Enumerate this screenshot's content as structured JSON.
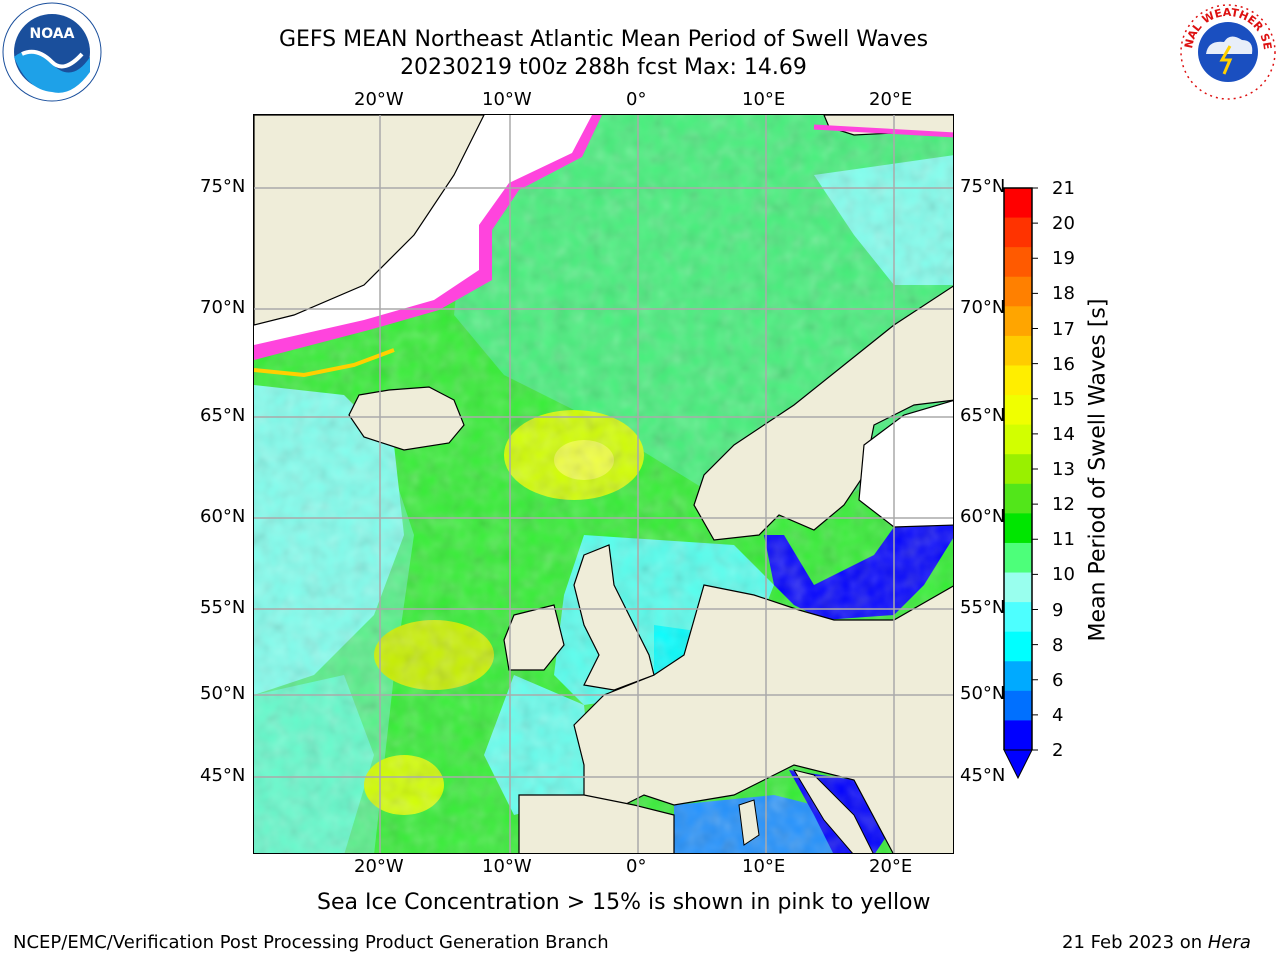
{
  "title": {
    "line1": "GEFS MEAN Northeast Atlantic Mean Period of Swell Waves",
    "line2": "20230219 t00z 288h fcst   Max: 14.69"
  },
  "logos": {
    "left": "noaa-logo",
    "right": "nws-logo",
    "right_text": "NATIONAL WEATHER SERVICE"
  },
  "axes": {
    "lon_top": [
      "20°W",
      "10°W",
      "0°",
      "10°E",
      "20°E"
    ],
    "lon_bottom": [
      "20°W",
      "10°W",
      "0°",
      "10°E",
      "20°E"
    ],
    "lat_left": [
      "75°N",
      "70°N",
      "65°N",
      "60°N",
      "55°N",
      "50°N",
      "45°N"
    ],
    "lat_right": [
      "75°N",
      "70°N",
      "65°N",
      "60°N",
      "55°N",
      "50°N",
      "45°N"
    ]
  },
  "colorbar": {
    "label": "Mean Period of Swell Waves [s]",
    "ticks": [
      "21",
      "20",
      "19",
      "18",
      "17",
      "16",
      "15",
      "14",
      "13",
      "12",
      "11",
      "10",
      "9",
      "8",
      "6",
      "4",
      "2"
    ],
    "colors": [
      "#ff0000",
      "#ff3300",
      "#ff5a00",
      "#ff8000",
      "#ffa500",
      "#ffcc00",
      "#ffee00",
      "#f0ff00",
      "#d2ff00",
      "#99f000",
      "#52e61a",
      "#00e600",
      "#4dff7a",
      "#99ffee",
      "#4dffff",
      "#00ffff",
      "#00aaff",
      "#0070ff",
      "#0000ff"
    ]
  },
  "caption": "Sea Ice Concentration > 15% is shown in pink to yellow",
  "footer": {
    "left": "NCEP/EMC/Verification Post Processing Product Generation Branch",
    "right_date": "21 Feb 2023 on ",
    "right_host": "Hera"
  }
}
